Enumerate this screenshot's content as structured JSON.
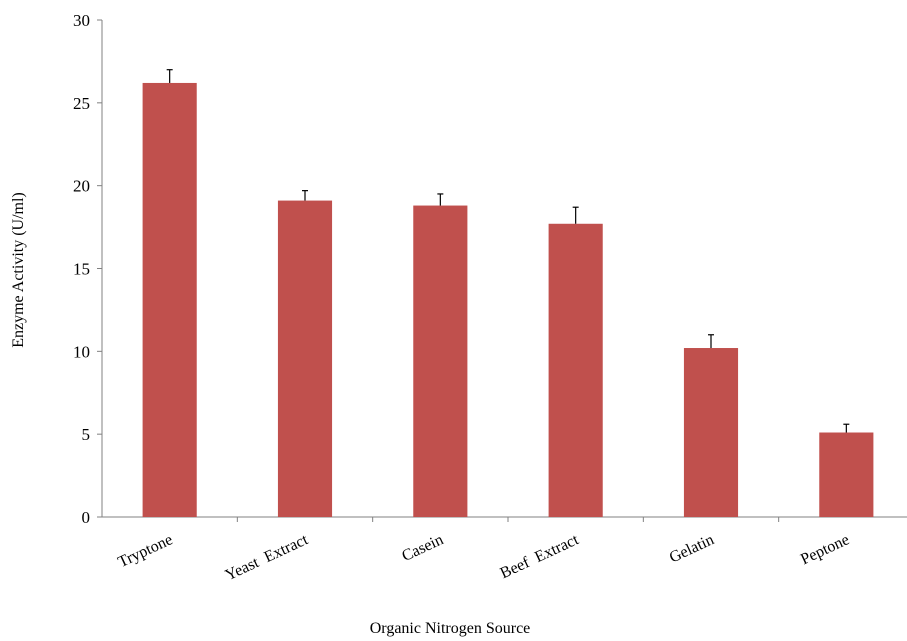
{
  "chart_data": {
    "type": "bar",
    "title": "",
    "xlabel": "Organic Nitrogen Source",
    "ylabel": "Enzyme Activity (U/ml)",
    "categories": [
      "Tryptone",
      "Yeast  Extract",
      "Casein",
      "Beef  Extract",
      "Gelatin",
      "Peptone"
    ],
    "values": [
      26.2,
      19.1,
      18.8,
      17.7,
      10.2,
      5.1
    ],
    "errors": [
      0.8,
      0.6,
      0.7,
      1.0,
      0.8,
      0.5
    ],
    "ylim": [
      0,
      30
    ],
    "yticks": [
      0,
      5,
      10,
      15,
      20,
      25,
      30
    ],
    "grid": false,
    "legend": false,
    "bar_color": "#c0504d"
  }
}
